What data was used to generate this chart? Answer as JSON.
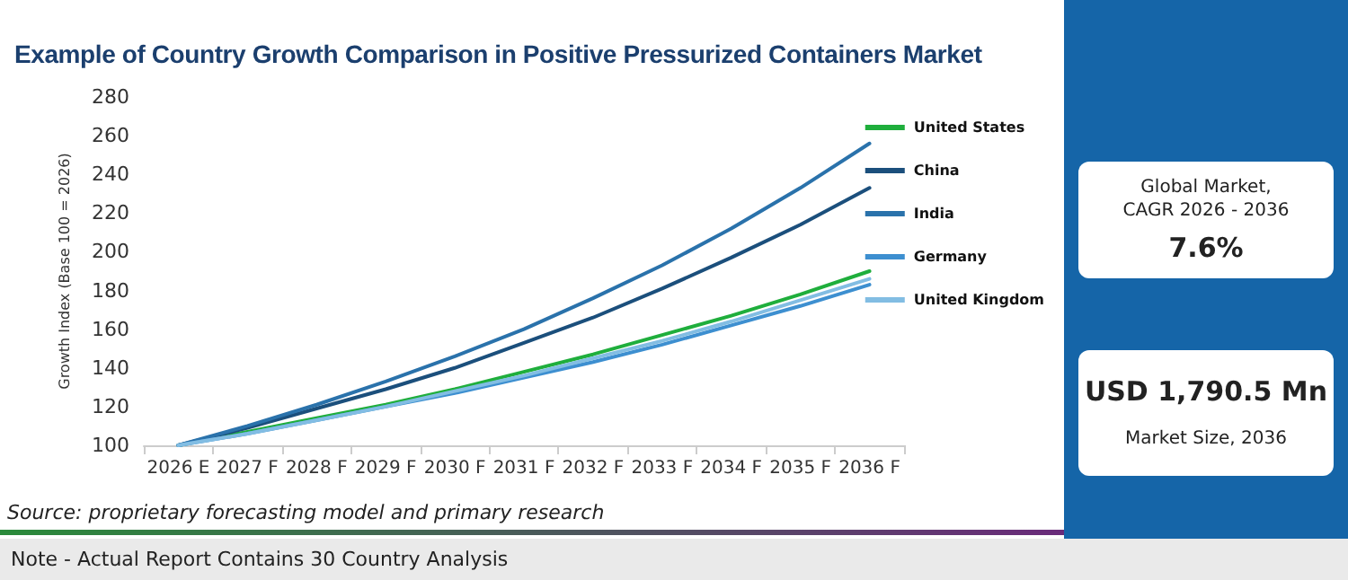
{
  "chart_data": {
    "type": "line",
    "title": "Example of Country Growth Comparison in Positive Pressurized Containers Market",
    "ylabel": "Growth Index (Base 100 = 2026)",
    "categories": [
      "2026 E",
      "2027 F",
      "2028 F",
      "2029 F",
      "2030 F",
      "2031 F",
      "2032 F",
      "2033 F",
      "2034 F",
      "2035 F",
      "2036 F"
    ],
    "series": [
      {
        "name": "United States",
        "color": "#1fae3c",
        "values": [
          100,
          107,
          114,
          121,
          129,
          138,
          147,
          157,
          167,
          178,
          190
        ]
      },
      {
        "name": "China",
        "color": "#1b4f7c",
        "values": [
          100,
          109,
          119,
          129,
          140,
          153,
          166,
          181,
          197,
          214,
          233
        ]
      },
      {
        "name": "India",
        "color": "#2a72ab",
        "values": [
          100,
          110,
          121,
          133,
          146,
          160,
          176,
          193,
          212,
          233,
          256
        ]
      },
      {
        "name": "Germany",
        "color": "#3d8fd0",
        "values": [
          100,
          106,
          113,
          120,
          127,
          135,
          143,
          152,
          162,
          172,
          183
        ]
      },
      {
        "name": "United Kingdom",
        "color": "#82bde3",
        "values": [
          100,
          106,
          113,
          120,
          128,
          136,
          145,
          154,
          164,
          175,
          186
        ]
      }
    ],
    "ylim": [
      100,
      280
    ],
    "yticks": [
      100,
      120,
      140,
      160,
      180,
      200,
      220,
      240,
      260,
      280
    ],
    "grid": false,
    "legend": "right",
    "marker": "none",
    "line_style": "solid",
    "annotations": [
      "Global Market, CAGR 2026 - 2036",
      "7.6%",
      "USD 1,790.5 Mn",
      "Market Size, 2036",
      "Source: proprietary forecasting model and primary research",
      "Note - Actual Report Contains 30 Country Analysis"
    ]
  }
}
